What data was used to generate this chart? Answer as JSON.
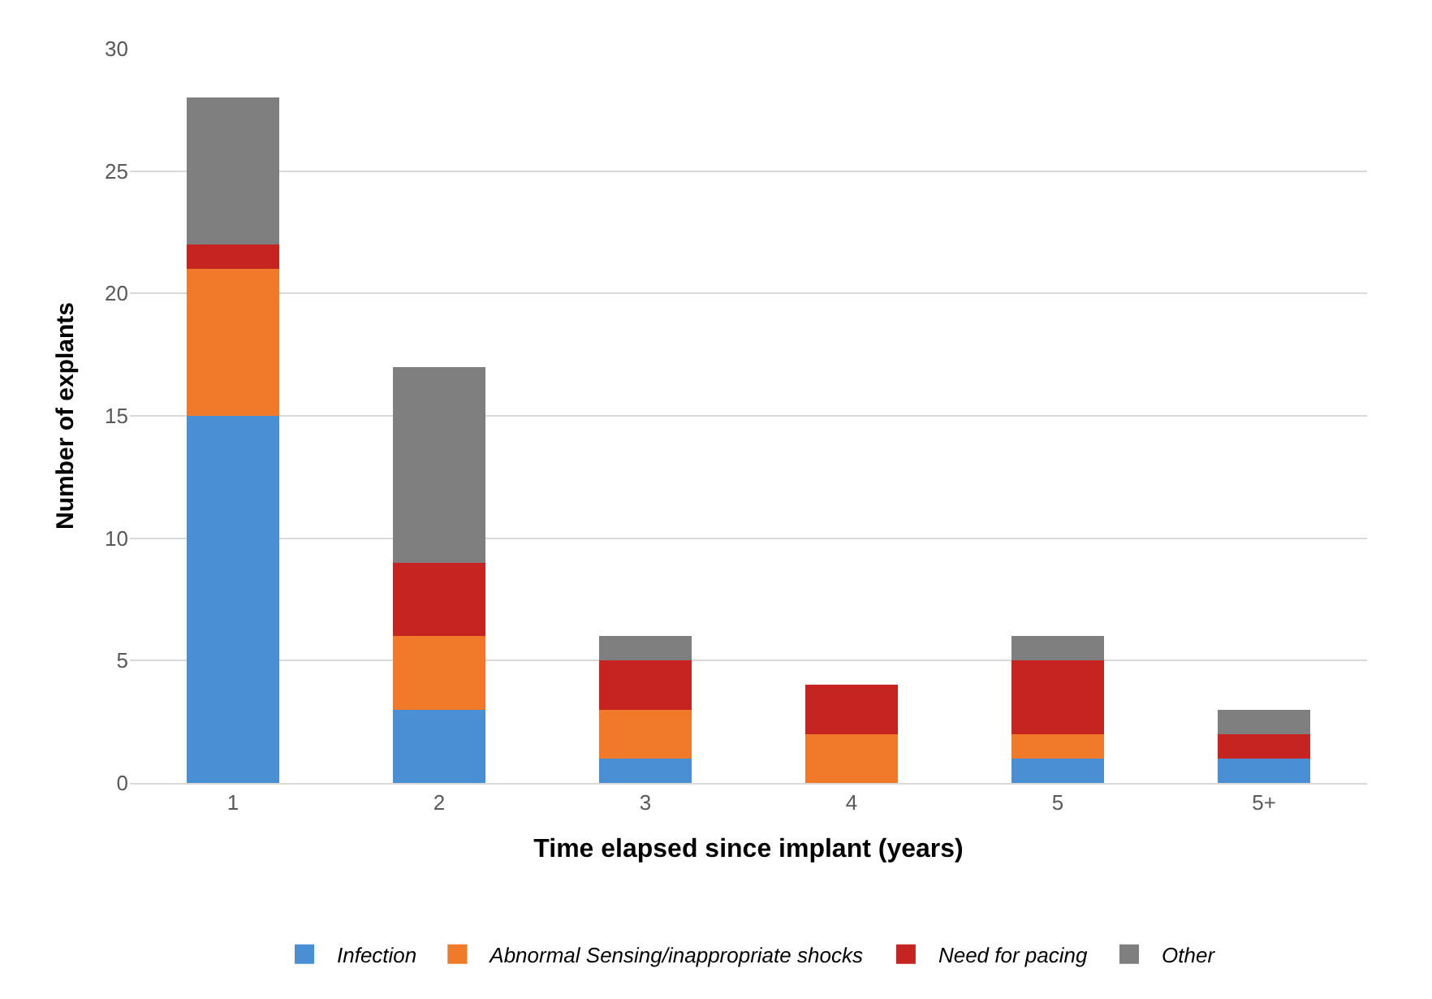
{
  "chart_data": {
    "type": "bar",
    "stacked": true,
    "xlabel": "Time elapsed since implant (years)",
    "ylabel": "Number of explants",
    "categories": [
      "1",
      "2",
      "3",
      "4",
      "5",
      "5+"
    ],
    "series": [
      {
        "name": "Infection",
        "color": "#4a8fd3",
        "values": [
          15,
          3,
          1,
          0,
          1,
          1
        ]
      },
      {
        "name": "Abnormal Sensing/inappropriate shocks",
        "color": "#f07a2a",
        "values": [
          6,
          3,
          2,
          2,
          1,
          0
        ]
      },
      {
        "name": "Need for pacing",
        "color": "#c62420",
        "values": [
          1,
          3,
          2,
          2,
          3,
          1
        ]
      },
      {
        "name": "Other",
        "color": "#7f7f7f",
        "values": [
          6,
          8,
          1,
          0,
          1,
          1
        ]
      }
    ],
    "ylim": [
      0,
      30
    ],
    "yticks": [
      0,
      5,
      10,
      15,
      20,
      25,
      30
    ],
    "grid": "y",
    "legend": "bottom"
  }
}
